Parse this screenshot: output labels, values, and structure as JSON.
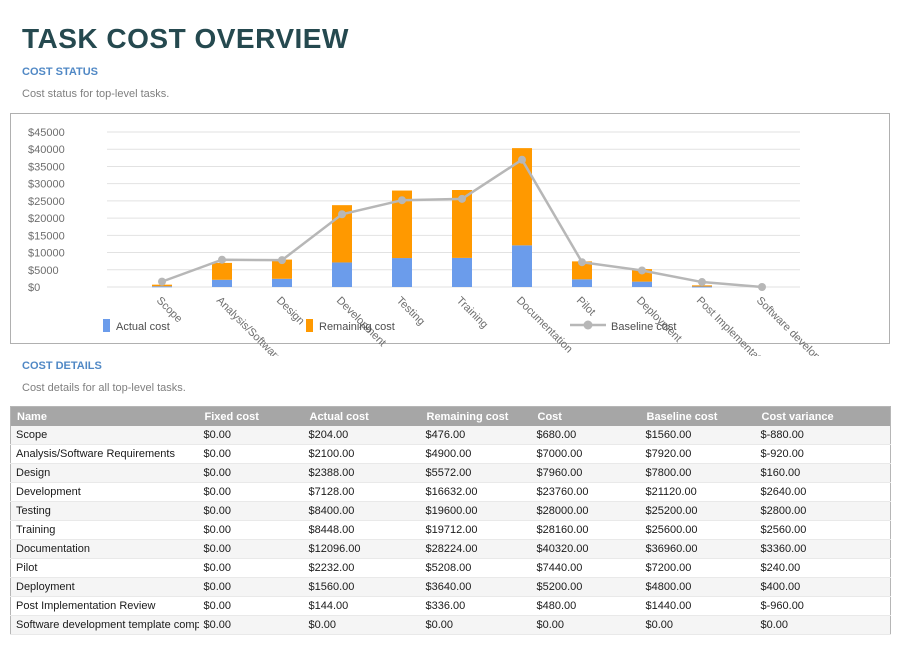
{
  "page": {
    "title": "TASK COST OVERVIEW"
  },
  "sections": {
    "cost_status": {
      "heading": "COST STATUS",
      "subtitle": "Cost status for top-level tasks."
    },
    "cost_details": {
      "heading": "COST DETAILS",
      "subtitle": "Cost details for all top-level tasks."
    }
  },
  "chart_data": {
    "type": "bar",
    "stacked": true,
    "title": "",
    "xlabel": "",
    "ylabel": "",
    "ylim": [
      0,
      45000
    ],
    "ytick_step": 5000,
    "ytick_prefix": "$",
    "grid": true,
    "legend_position": "bottom",
    "categories": [
      "Scope",
      "Analysis/Software Requirements",
      "Design",
      "Development",
      "Testing",
      "Training",
      "Documentation",
      "Pilot",
      "Deployment",
      "Post Implementation Review",
      "Software development template complete"
    ],
    "series": [
      {
        "name": "Actual cost",
        "type": "bar",
        "color": "#6b9ceb",
        "values": [
          204,
          2100,
          2388,
          7128,
          8400,
          8448,
          12096,
          2232,
          1560,
          144,
          0
        ]
      },
      {
        "name": "Remaining cost",
        "type": "bar",
        "color": "#ff9900",
        "values": [
          476,
          4900,
          5572,
          16632,
          19600,
          19712,
          28224,
          5208,
          3640,
          336,
          0
        ]
      },
      {
        "name": "Baseline cost",
        "type": "line",
        "color": "#b7b7b7",
        "values": [
          1560,
          7920,
          7800,
          21120,
          25200,
          25600,
          36960,
          7200,
          4800,
          1440,
          0
        ]
      }
    ]
  },
  "table": {
    "columns": [
      "Name",
      "Fixed cost",
      "Actual cost",
      "Remaining cost",
      "Cost",
      "Baseline cost",
      "Cost variance"
    ],
    "rows": [
      [
        "Scope",
        "$0.00",
        "$204.00",
        "$476.00",
        "$680.00",
        "$1560.00",
        "$-880.00"
      ],
      [
        "Analysis/Software Requirements",
        "$0.00",
        "$2100.00",
        "$4900.00",
        "$7000.00",
        "$7920.00",
        "$-920.00"
      ],
      [
        "Design",
        "$0.00",
        "$2388.00",
        "$5572.00",
        "$7960.00",
        "$7800.00",
        "$160.00"
      ],
      [
        "Development",
        "$0.00",
        "$7128.00",
        "$16632.00",
        "$23760.00",
        "$21120.00",
        "$2640.00"
      ],
      [
        "Testing",
        "$0.00",
        "$8400.00",
        "$19600.00",
        "$28000.00",
        "$25200.00",
        "$2800.00"
      ],
      [
        "Training",
        "$0.00",
        "$8448.00",
        "$19712.00",
        "$28160.00",
        "$25600.00",
        "$2560.00"
      ],
      [
        "Documentation",
        "$0.00",
        "$12096.00",
        "$28224.00",
        "$40320.00",
        "$36960.00",
        "$3360.00"
      ],
      [
        "Pilot",
        "$0.00",
        "$2232.00",
        "$5208.00",
        "$7440.00",
        "$7200.00",
        "$240.00"
      ],
      [
        "Deployment",
        "$0.00",
        "$1560.00",
        "$3640.00",
        "$5200.00",
        "$4800.00",
        "$400.00"
      ],
      [
        "Post Implementation Review",
        "$0.00",
        "$144.00",
        "$336.00",
        "$480.00",
        "$1440.00",
        "$-960.00"
      ],
      [
        "Software development template complete",
        "$0.00",
        "$0.00",
        "$0.00",
        "$0.00",
        "$0.00",
        "$0.00"
      ]
    ]
  },
  "colors": {
    "title": "#25494f",
    "section_heading": "#5088c5",
    "table_header_bg": "#a6a6a6",
    "gridline": "#e2e2e2"
  }
}
